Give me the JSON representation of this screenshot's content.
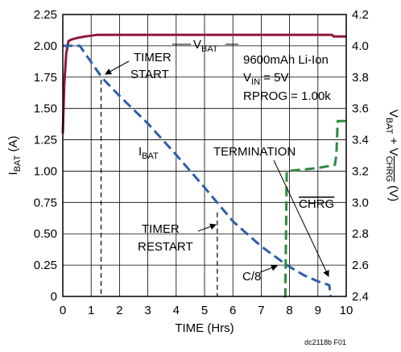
{
  "chart_data": {
    "type": "line",
    "x_axis": {
      "label": "TIME (Hrs)",
      "range": [
        0,
        10
      ],
      "ticks": [
        "0",
        "1",
        "2",
        "3",
        "4",
        "5",
        "6",
        "7",
        "8",
        "9",
        "10"
      ]
    },
    "y_left_axis": {
      "label_main": "I",
      "label_sub": "BAT",
      "label_unit": " (A)",
      "range": [
        0,
        2.25
      ],
      "ticks": [
        "0",
        "0.25",
        "0.50",
        "0.75",
        "1.00",
        "1.25",
        "1.50",
        "1.75",
        "2.00",
        "2.25"
      ]
    },
    "y_right_axis": {
      "label_part1": "V",
      "label_sub1": "BAT",
      "label_part2": " + V",
      "label_sub2": "CHRG",
      "label_unit": " (V)",
      "range": [
        2.4,
        4.2
      ],
      "ticks": [
        "2.4",
        "2.6",
        "2.8",
        "3.0",
        "3.2",
        "3.4",
        "3.6",
        "3.8",
        "4.0",
        "4.2"
      ]
    },
    "grid": true,
    "series": [
      {
        "name": "VBAT",
        "axis": "right",
        "color": "#8b1a3a",
        "style": "solid",
        "x": [
          0,
          0.05,
          0.12,
          0.2,
          0.3,
          0.5,
          0.8,
          1.2,
          2,
          4,
          6,
          8,
          9,
          9.5,
          9.55,
          10
        ],
        "y": [
          3.44,
          3.75,
          3.95,
          4.03,
          4.04,
          4.05,
          4.06,
          4.07,
          4.07,
          4.07,
          4.07,
          4.07,
          4.07,
          4.07,
          4.06,
          4.06
        ]
      },
      {
        "name": "IBAT",
        "axis": "left",
        "color": "#2e5eaa",
        "style": "dashed",
        "x": [
          0,
          0.6,
          1.0,
          1.4,
          2.0,
          3.0,
          4.0,
          5.0,
          6.0,
          7.0,
          7.9,
          8.5,
          9.0,
          9.4,
          9.45
        ],
        "y": [
          2.0,
          2.0,
          1.87,
          1.74,
          1.6,
          1.38,
          1.13,
          0.87,
          0.6,
          0.4,
          0.25,
          0.17,
          0.12,
          0.09,
          0.0
        ]
      },
      {
        "name": "CHRG",
        "axis": "right",
        "color": "#2e8b3e",
        "style": "dashed",
        "x": [
          7.8,
          7.85,
          7.9,
          9.0,
          9.6,
          9.65,
          9.7,
          10
        ],
        "y": [
          2.4,
          2.4,
          3.2,
          3.22,
          3.24,
          3.3,
          3.52,
          3.52
        ]
      }
    ],
    "vertical_markers": [
      {
        "x": 1.35,
        "y": 1.73
      },
      {
        "x": 5.45,
        "y": 0.67
      }
    ],
    "annotations": {
      "vbat_label": {
        "main": "V",
        "sub": "BAT"
      },
      "ibat_label": {
        "main": "I",
        "sub": "BAT"
      },
      "timer_start": [
        "TIMER",
        "START"
      ],
      "timer_restart": [
        "TIMER",
        "RESTART"
      ],
      "termination": "TERMINATION",
      "chrg": "CHRG",
      "c8": "C/8",
      "info": [
        "9600mAh Li-Ion",
        "V",
        "IN",
        " = 5V",
        "RPROG = 1.00k"
      ]
    }
  },
  "caption": "dc2118b F01"
}
